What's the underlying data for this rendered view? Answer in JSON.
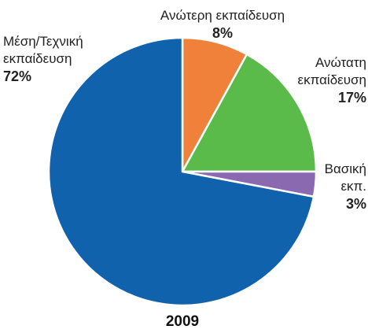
{
  "chart_data": {
    "type": "pie",
    "categories": [
      "Ανώτερη εκπαίδευση",
      "Ανώτατη εκπαίδευση",
      "Βασική εκπ.",
      "Μέση/Τεχνική εκπαίδευση"
    ],
    "values": [
      8,
      17,
      3,
      72
    ],
    "value_labels": [
      "8%",
      "17%",
      "3%",
      "72%"
    ],
    "colors": [
      "#f0813a",
      "#5bbb4a",
      "#8b69b0",
      "#0f62ab"
    ],
    "footer": "2009"
  }
}
